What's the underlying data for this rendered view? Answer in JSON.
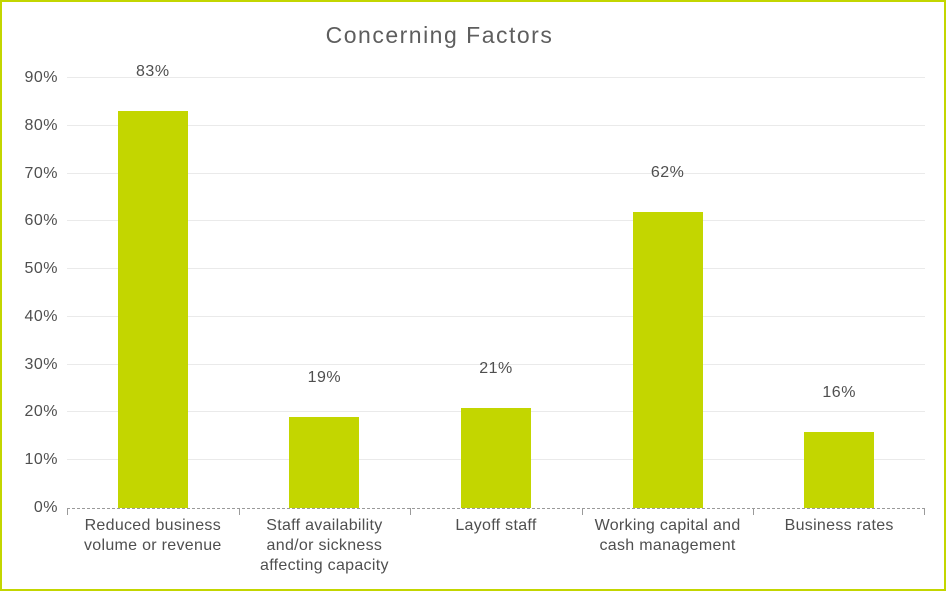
{
  "chart_data": {
    "type": "bar",
    "title": "Concerning Factors",
    "categories": [
      "Reduced business volume or revenue",
      "Staff availability and/or sickness affecting capacity",
      "Layoff staff",
      "Working capital and cash management",
      "Business rates"
    ],
    "values": [
      83,
      19,
      21,
      62,
      16
    ],
    "value_labels": [
      "83%",
      "19%",
      "21%",
      "62%",
      "16%"
    ],
    "y_tick_labels": [
      "0%",
      "10%",
      "20%",
      "30%",
      "40%",
      "50%",
      "60%",
      "70%",
      "80%",
      "90%"
    ],
    "ylim": [
      0,
      90
    ],
    "y_tick_step": 10,
    "grid": true,
    "legend_position": "none",
    "bar_color": "#c3d600",
    "border_color": "#c3d600",
    "gridline_color": "#eaeaea",
    "axis_line_color": "#9a9a9a",
    "text_color": "#4f4f4f",
    "title_color": "#5e5e5e"
  }
}
